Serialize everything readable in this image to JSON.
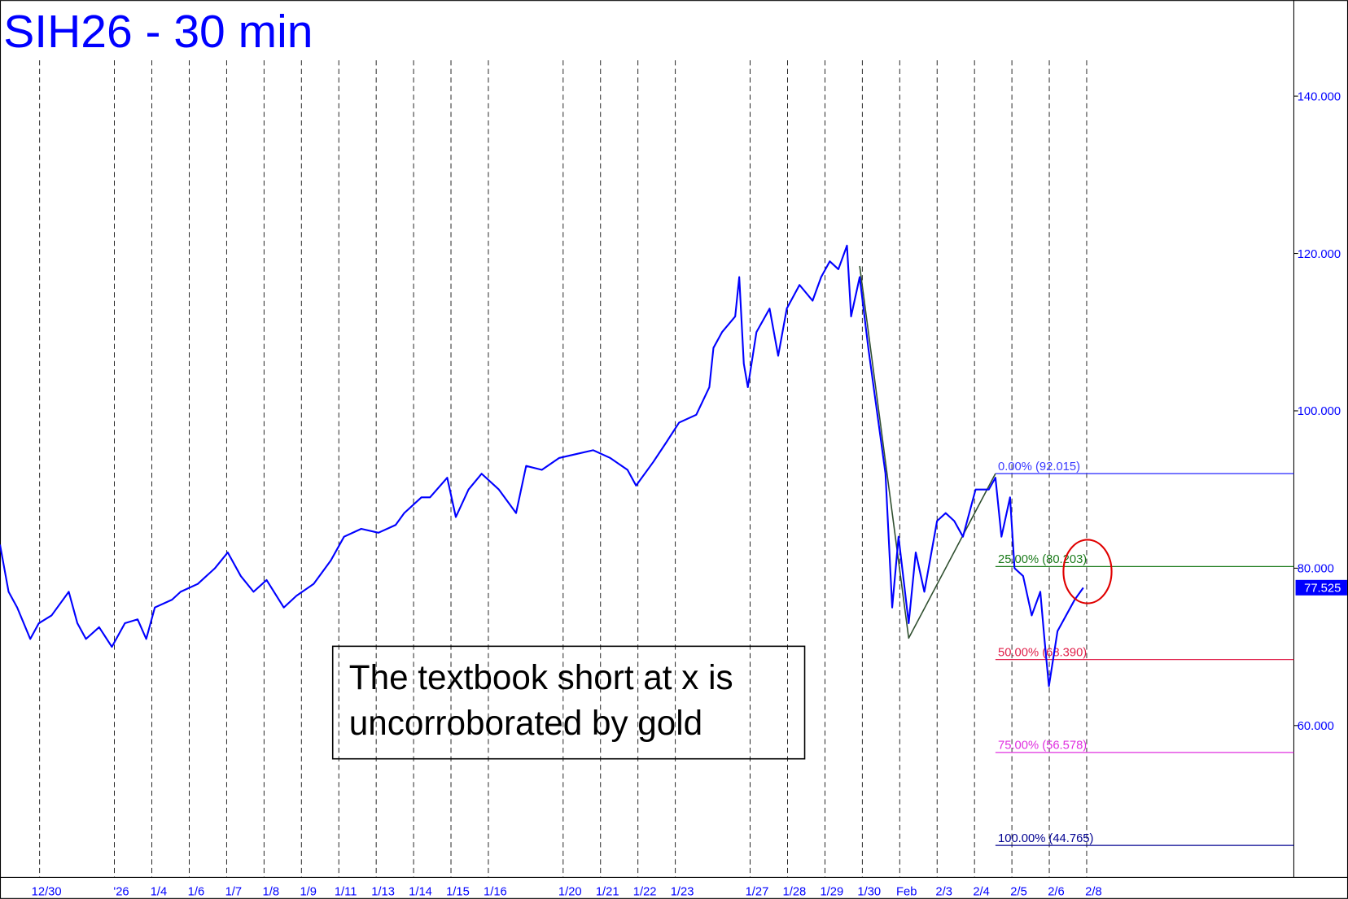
{
  "chart_data": {
    "type": "line",
    "title": "SIH26 - 30 min",
    "xlim": [
      -1.06,
      33.54
    ],
    "ylim": [
      40.7,
      152.2
    ],
    "xticks": [
      {
        "value": 0,
        "label": "12/30"
      },
      {
        "value": 2,
        "label": "'26"
      },
      {
        "value": 3,
        "label": "1/4"
      },
      {
        "value": 4,
        "label": "1/6"
      },
      {
        "value": 5,
        "label": "1/7"
      },
      {
        "value": 6,
        "label": "1/8"
      },
      {
        "value": 7,
        "label": "1/9"
      },
      {
        "value": 8,
        "label": "1/11"
      },
      {
        "value": 9,
        "label": "1/13"
      },
      {
        "value": 10,
        "label": "1/14"
      },
      {
        "value": 11,
        "label": "1/15"
      },
      {
        "value": 12,
        "label": "1/16"
      },
      {
        "value": 14,
        "label": "1/20"
      },
      {
        "value": 15,
        "label": "1/21"
      },
      {
        "value": 16,
        "label": "1/22"
      },
      {
        "value": 17,
        "label": "1/23"
      },
      {
        "value": 19,
        "label": "1/27"
      },
      {
        "value": 20,
        "label": "1/28"
      },
      {
        "value": 21,
        "label": "1/29"
      },
      {
        "value": 22,
        "label": "1/30"
      },
      {
        "value": 23,
        "label": "Feb"
      },
      {
        "value": 24,
        "label": "2/3"
      },
      {
        "value": 25,
        "label": "2/4"
      },
      {
        "value": 26,
        "label": "2/5"
      },
      {
        "value": 27,
        "label": "2/6"
      },
      {
        "value": 28,
        "label": "2/8"
      }
    ],
    "yticks": [
      {
        "value": 140,
        "label": "140.000"
      },
      {
        "value": 120,
        "label": "120.000"
      },
      {
        "value": 100,
        "label": "100.000"
      },
      {
        "value": 80,
        "label": "80.000"
      },
      {
        "value": 60,
        "label": "60.000"
      }
    ],
    "grid": true,
    "color": "#0000ff",
    "x": [
      -1.06,
      -0.83,
      -0.6,
      -0.25,
      -0.02,
      0.32,
      0.78,
      1.01,
      1.24,
      1.59,
      1.93,
      2.28,
      2.62,
      2.85,
      3.08,
      3.54,
      3.77,
      4.23,
      4.69,
      5.03,
      5.38,
      5.72,
      6.07,
      6.53,
      6.87,
      7.33,
      7.79,
      8.14,
      8.6,
      9.06,
      9.52,
      9.75,
      10.21,
      10.44,
      10.9,
      11.13,
      11.47,
      11.82,
      12.28,
      12.74,
      13.01,
      13.43,
      13.89,
      14.34,
      14.8,
      15.26,
      15.72,
      15.95,
      16.41,
      16.76,
      17.1,
      17.56,
      17.91,
      18.02,
      18.25,
      18.6,
      18.71,
      18.83,
      18.94,
      19.17,
      19.52,
      19.75,
      19.98,
      20.32,
      20.67,
      20.9,
      21.13,
      21.36,
      21.59,
      21.7,
      21.93,
      22.16,
      22.39,
      22.62,
      22.8,
      22.97,
      23.24,
      23.43,
      23.66,
      24.0,
      24.23,
      24.46,
      24.69,
      25.03,
      25.38,
      25.56,
      25.72,
      25.95,
      26.07,
      26.3,
      26.53,
      26.76,
      26.87,
      26.99,
      27.22,
      27.45,
      27.68,
      27.91
    ],
    "values": [
      83,
      77,
      75,
      71,
      73,
      74,
      77,
      73,
      71,
      72.5,
      70,
      73,
      73.5,
      71,
      75,
      76,
      77,
      78,
      80,
      82,
      79,
      77,
      78.5,
      75,
      76.5,
      78,
      81,
      84,
      85,
      84.5,
      85.5,
      87,
      89,
      89,
      91.5,
      86.5,
      90,
      92,
      90,
      87,
      93,
      92.5,
      94,
      94.5,
      95,
      94,
      92.5,
      90.5,
      93.5,
      96,
      98.5,
      99.5,
      103,
      108,
      110,
      112,
      117,
      106,
      103,
      110,
      113,
      107,
      113,
      116,
      114,
      117,
      119,
      118,
      121,
      112,
      117,
      108,
      100,
      92,
      75,
      84,
      73,
      82,
      77,
      86,
      87,
      86,
      84,
      90,
      90,
      91.5,
      84,
      89,
      80,
      79,
      74,
      77,
      71,
      65,
      72,
      74,
      76,
      77.525
    ],
    "last_price": {
      "value": 77.525,
      "label": "77.525"
    },
    "pattern": {
      "color": "#2f4f2f",
      "x": [
        21.93,
        23.24,
        25.56
      ],
      "values": [
        118.4,
        71.1,
        92.015
      ]
    },
    "fib_start": 25.56,
    "levels": [
      {
        "label": "0.00% (92.015)",
        "value": 92.015,
        "color": "#3a3aff"
      },
      {
        "label": "25.00% (80.203)",
        "value": 80.203,
        "color": "#1a7a1a"
      },
      {
        "label": "50.00% (68.390)",
        "value": 68.39,
        "color": "#e0204a"
      },
      {
        "label": "75.00% (56.578)",
        "value": 56.578,
        "color": "#e030e0"
      },
      {
        "label": "100.00% (44.765)",
        "value": 44.765,
        "color": "#000090"
      }
    ],
    "annotation": [
      "The textbook short at x is",
      "uncorroborated by gold"
    ]
  }
}
